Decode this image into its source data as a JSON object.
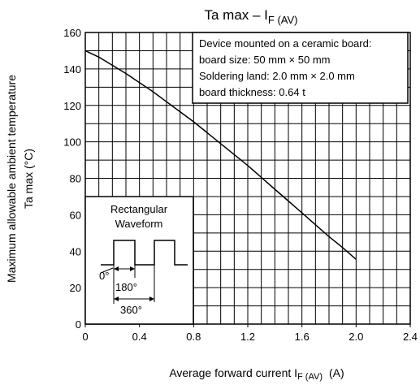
{
  "chart_data": {
    "type": "line",
    "title": {
      "main": "Ta max – I",
      "sub": "F (AV)"
    },
    "ylabel": {
      "line1": "Maximum allowable ambient temperature",
      "line2": "Ta max    (°C)"
    },
    "xlabel": {
      "main": "Average forward current    I",
      "sub": "F (AV)",
      "unit": "(A)"
    },
    "xlim": [
      0,
      2.4
    ],
    "ylim": [
      0,
      160
    ],
    "xticks": [
      0,
      0.4,
      0.8,
      1.2,
      1.6,
      2.0,
      2.4
    ],
    "xtick_labels": [
      "0",
      "0.4",
      "0.8",
      "1.2",
      "1.6",
      "2.0",
      "2.4"
    ],
    "yticks": [
      0,
      20,
      40,
      60,
      80,
      100,
      120,
      140,
      160
    ],
    "ytick_labels": [
      "0",
      "20",
      "40",
      "60",
      "80",
      "100",
      "120",
      "140",
      "160"
    ],
    "grid": true,
    "series": [
      {
        "x": [
          0,
          0.1,
          0.2,
          0.3,
          0.4,
          0.5,
          0.6,
          0.7,
          0.8,
          0.9,
          1.0,
          1.1,
          1.2,
          1.3,
          1.4,
          1.5,
          1.6,
          1.7,
          1.8,
          1.9,
          2.0
        ],
        "y": [
          150,
          146.5,
          142,
          137.5,
          132.5,
          127.5,
          122,
          116.5,
          111,
          105,
          99,
          93,
          87,
          80.5,
          74,
          67.5,
          61,
          54.5,
          48,
          42,
          35.5
        ]
      }
    ],
    "annotation_box": {
      "lines": [
        "Device mounted on a ceramic board:",
        "board size: 50 mm × 50 mm",
        "Soldering land: 2.0 mm × 2.0 mm",
        "board thickness: 0.64 t"
      ]
    },
    "waveform_inset": {
      "title_lines": [
        "Rectangular",
        "Waveform"
      ],
      "labels": [
        "0°",
        "180°",
        "360°"
      ]
    }
  }
}
